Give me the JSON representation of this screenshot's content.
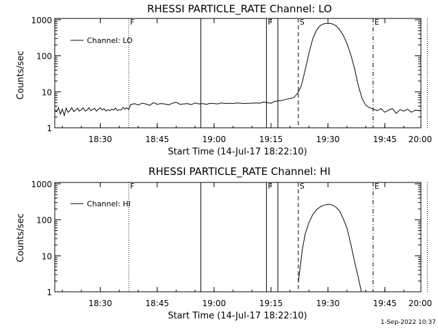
{
  "footer": {
    "timestamp": "1-Sep-2022 10:37"
  },
  "chart_data": [
    {
      "type": "line",
      "title": "RHESSI PARTICLE_RATE Channel: LO",
      "xlabel": "Start Time (14-Jul-17 18:22:10)",
      "ylabel": "Counts/sec",
      "y_scale": "log",
      "ylim": [
        1,
        1000
      ],
      "xlim_minutes": [
        18.0,
        114.5
      ],
      "x_ticks": [
        {
          "minutes": 30,
          "label": "18:30"
        },
        {
          "minutes": 45,
          "label": "18:45"
        },
        {
          "minutes": 60,
          "label": "19:00"
        },
        {
          "minutes": 75,
          "label": "19:15"
        },
        {
          "minutes": 90,
          "label": "19:30"
        },
        {
          "minutes": 105,
          "label": "19:45"
        },
        {
          "minutes": 120,
          "label": "20:00"
        }
      ],
      "y_ticks": [
        {
          "value": 1,
          "label": "1"
        },
        {
          "value": 10,
          "label": "10"
        },
        {
          "value": 100,
          "label": "100"
        },
        {
          "value": 1000,
          "label": "1000"
        }
      ],
      "legend": {
        "placement": "top-left",
        "label": "Channel: LO"
      },
      "markers": [
        {
          "minutes": 37.5,
          "style": "dotted",
          "label": "F"
        },
        {
          "minutes": 56.5,
          "style": "solid",
          "label": ""
        },
        {
          "minutes": 73.8,
          "style": "solid",
          "label": "F"
        },
        {
          "minutes": 76.8,
          "style": "solid",
          "label": ""
        },
        {
          "minutes": 82.2,
          "style": "dashed",
          "label": "S"
        },
        {
          "minutes": 101.9,
          "style": "dashdot",
          "label": "E"
        },
        {
          "minutes": 116.2,
          "style": "dotted",
          "label": ""
        }
      ],
      "series": [
        {
          "name": "Channel: LO",
          "x_minutes": [
            18,
            18.5,
            19,
            19.5,
            20,
            20.5,
            21,
            21.5,
            22,
            22.5,
            23,
            23.5,
            24,
            24.5,
            25,
            25.5,
            26,
            26.5,
            27,
            27.5,
            28,
            28.5,
            29,
            29.5,
            30,
            30.5,
            31,
            31.5,
            32,
            32.5,
            33,
            33.5,
            34,
            34.5,
            35,
            35.5,
            36,
            36.5,
            37,
            37.5,
            38,
            39,
            40,
            41,
            42,
            43,
            44,
            45,
            46,
            47,
            48,
            49,
            50,
            51,
            52,
            53,
            54,
            55,
            56,
            57,
            58,
            59,
            60,
            61,
            62,
            63,
            64,
            65,
            66,
            67,
            68,
            69,
            70,
            71,
            72,
            73,
            74,
            75,
            76,
            77,
            78,
            79,
            80,
            81,
            82,
            83,
            84,
            85,
            86,
            87,
            88,
            89,
            90,
            91,
            92,
            93,
            94,
            95,
            96,
            97,
            98,
            99,
            100,
            101,
            102,
            103,
            104,
            105,
            106,
            107,
            108,
            109,
            110,
            111,
            112,
            113,
            114.5
          ],
          "values": [
            3.0,
            2.8,
            3.6,
            2.4,
            3.3,
            2.2,
            3.5,
            2.7,
            3.0,
            3.6,
            2.8,
            3.1,
            3.5,
            2.9,
            3.2,
            3.6,
            2.9,
            3.1,
            3.6,
            3.0,
            3.2,
            3.5,
            2.9,
            3.3,
            3.6,
            3.1,
            3.4,
            2.9,
            3.2,
            3.0,
            3.3,
            3.1,
            3.5,
            3.0,
            3.2,
            3.1,
            3.7,
            3.3,
            3.6,
            3.2,
            4.4,
            4.7,
            4.3,
            4.8,
            4.6,
            4.2,
            5.0,
            4.5,
            4.7,
            4.6,
            4.3,
            4.8,
            5.1,
            4.5,
            4.6,
            4.7,
            4.4,
            4.9,
            4.6,
            4.7,
            4.5,
            4.8,
            4.7,
            4.6,
            4.9,
            4.7,
            4.8,
            4.7,
            4.9,
            4.8,
            4.7,
            4.8,
            4.8,
            4.9,
            4.8,
            5.2,
            5.0,
            4.8,
            5.4,
            5.6,
            5.8,
            6.2,
            6.5,
            6.9,
            9.0,
            15,
            40,
            120,
            300,
            520,
            700,
            780,
            800,
            780,
            700,
            550,
            380,
            220,
            110,
            45,
            15,
            6.5,
            4.2,
            3.6,
            3.3,
            3.0,
            3.4,
            2.7,
            3.1,
            3.4,
            2.5,
            3.2,
            2.9,
            3.3,
            2.7,
            3.1,
            3.0
          ]
        }
      ]
    },
    {
      "type": "line",
      "title": "RHESSI PARTICLE_RATE Channel: HI",
      "xlabel": "Start Time (14-Jul-17 18:22:10)",
      "ylabel": "Counts/sec",
      "y_scale": "log",
      "ylim": [
        1,
        1000
      ],
      "xlim_minutes": [
        18.0,
        114.5
      ],
      "x_ticks": [
        {
          "minutes": 30,
          "label": "18:30"
        },
        {
          "minutes": 45,
          "label": "18:45"
        },
        {
          "minutes": 60,
          "label": "19:00"
        },
        {
          "minutes": 75,
          "label": "19:15"
        },
        {
          "minutes": 90,
          "label": "19:30"
        },
        {
          "minutes": 105,
          "label": "19:45"
        },
        {
          "minutes": 120,
          "label": "20:00"
        }
      ],
      "y_ticks": [
        {
          "value": 1,
          "label": "1"
        },
        {
          "value": 10,
          "label": "10"
        },
        {
          "value": 100,
          "label": "100"
        },
        {
          "value": 1000,
          "label": "1000"
        }
      ],
      "legend": {
        "placement": "top-left",
        "label": "Channel: HI"
      },
      "markers": [
        {
          "minutes": 37.5,
          "style": "dotted",
          "label": "F"
        },
        {
          "minutes": 56.5,
          "style": "solid",
          "label": ""
        },
        {
          "minutes": 73.8,
          "style": "solid",
          "label": "F"
        },
        {
          "minutes": 76.8,
          "style": "solid",
          "label": ""
        },
        {
          "minutes": 82.2,
          "style": "dashed",
          "label": "S"
        },
        {
          "minutes": 101.9,
          "style": "dashdot",
          "label": "E"
        },
        {
          "minutes": 116.2,
          "style": "dotted",
          "label": ""
        }
      ],
      "series": [
        {
          "name": "Channel: HI",
          "x_minutes": [
            82.2,
            82.7,
            83.2,
            84,
            85,
            86,
            87,
            88,
            89,
            90,
            91,
            92,
            93,
            94,
            95,
            96,
            97,
            98,
            98.8
          ],
          "values": [
            1.8,
            5,
            14,
            40,
            85,
            140,
            190,
            230,
            255,
            270,
            260,
            230,
            180,
            110,
            60,
            22,
            7,
            2.5,
            1
          ]
        }
      ]
    }
  ]
}
